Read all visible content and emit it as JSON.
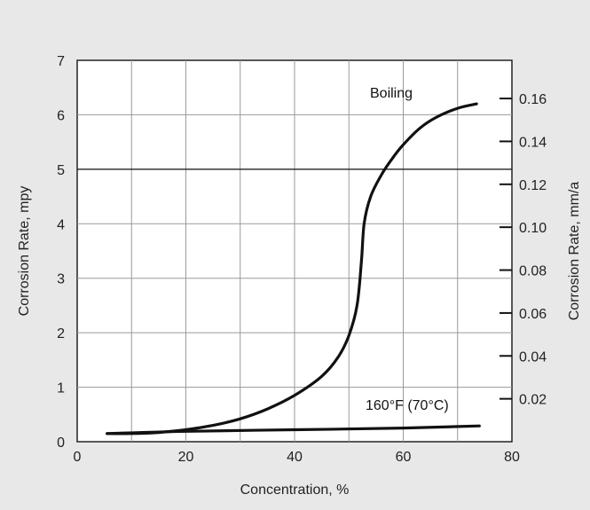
{
  "chart_data": {
    "type": "line",
    "xlabel": "Concentration, %",
    "ylabel": "Corrosion Rate, mpy",
    "y2label": "Corrosion Rate, mm/a",
    "xlim": [
      0,
      80
    ],
    "ylim": [
      0,
      7
    ],
    "xticks": [
      "0",
      "20",
      "40",
      "60",
      "80"
    ],
    "yticks": [
      "0",
      "1",
      "2",
      "3",
      "4",
      "5",
      "6",
      "7"
    ],
    "y2ticks": [
      "0.02",
      "0.04",
      "0.06",
      "0.08",
      "0.10",
      "0.12",
      "0.14",
      "0.16"
    ],
    "grid": true,
    "background_color": "#e8e8e8",
    "plot_color": "#ffffff",
    "line_color": "#111111",
    "series": [
      {
        "name": "Boiling",
        "x": [
          5.5,
          10,
          15,
          20,
          25,
          30,
          35,
          40,
          45,
          48,
          50,
          51.5,
          52.3,
          52.8,
          54,
          56,
          58,
          60,
          63,
          66,
          70,
          73.5
        ],
        "y": [
          0.15,
          0.15,
          0.17,
          0.22,
          0.3,
          0.42,
          0.6,
          0.85,
          1.2,
          1.55,
          1.95,
          2.5,
          3.3,
          4.0,
          4.5,
          4.9,
          5.2,
          5.45,
          5.75,
          5.95,
          6.12,
          6.2
        ]
      },
      {
        "name": "160°F (70°C)",
        "x": [
          5.5,
          20,
          40,
          60,
          74
        ],
        "y": [
          0.15,
          0.19,
          0.22,
          0.25,
          0.29
        ]
      }
    ],
    "annotations": [
      "Boiling",
      "160°F (70°C)"
    ]
  }
}
